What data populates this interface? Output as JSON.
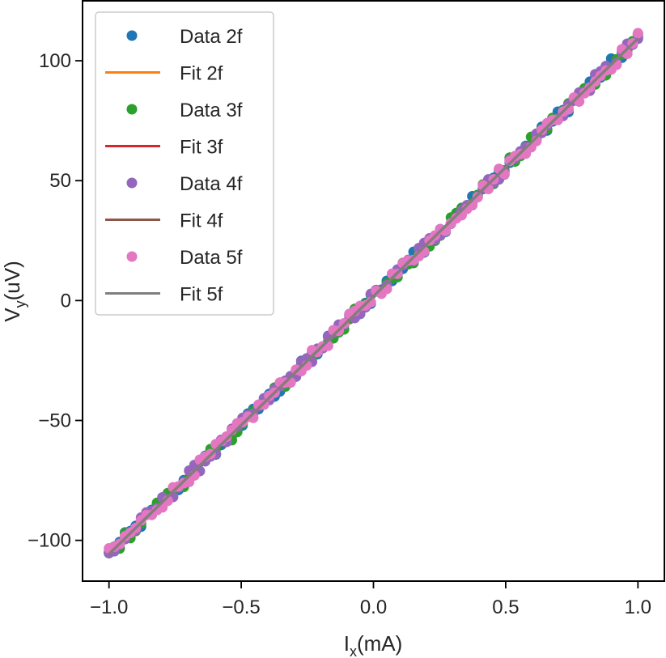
{
  "chart_data": {
    "type": "scatter",
    "title": "",
    "xlabel": "I",
    "xlabel_sub": "x",
    "xlabel_unit": "(mA)",
    "ylabel": "V",
    "ylabel_sub": "y",
    "ylabel_unit": "(uV)",
    "xlim": [
      -1.1,
      1.1
    ],
    "ylim": [
      -117,
      125
    ],
    "xticks": [
      -1.0,
      -0.5,
      0.0,
      0.5,
      1.0
    ],
    "xtick_labels": [
      "−1.0",
      "−0.5",
      "0.0",
      "0.5",
      "1.0"
    ],
    "yticks": [
      -100,
      -50,
      0,
      50,
      100
    ],
    "ytick_labels": [
      "−100",
      "−50",
      "0",
      "50",
      "100"
    ],
    "grid": false,
    "legend_position": "top-left",
    "x_range": [
      -1.0,
      1.0
    ],
    "n_points": 100,
    "series": [
      {
        "name": "Data 2f",
        "kind": "scatter",
        "color": "#1f77b4",
        "slope": 107.5,
        "intercept": 1.8
      },
      {
        "name": "Fit 2f",
        "kind": "line",
        "color": "#ff7f0e",
        "slope": 107.5,
        "intercept": 1.8
      },
      {
        "name": "Data 3f",
        "kind": "scatter",
        "color": "#2ca02c",
        "slope": 107.5,
        "intercept": 1.8
      },
      {
        "name": "Fit 3f",
        "kind": "line",
        "color": "#d62728",
        "slope": 107.5,
        "intercept": 1.8
      },
      {
        "name": "Data 4f",
        "kind": "scatter",
        "color": "#9467bd",
        "slope": 107.5,
        "intercept": 1.8
      },
      {
        "name": "Fit 4f",
        "kind": "line",
        "color": "#8c564b",
        "slope": 107.5,
        "intercept": 1.8
      },
      {
        "name": "Data 5f",
        "kind": "scatter",
        "color": "#e377c2",
        "slope": 107.5,
        "intercept": 1.8
      },
      {
        "name": "Fit 5f",
        "kind": "line",
        "color": "#7f7f7f",
        "slope": 107.5,
        "intercept": 1.8
      }
    ]
  }
}
